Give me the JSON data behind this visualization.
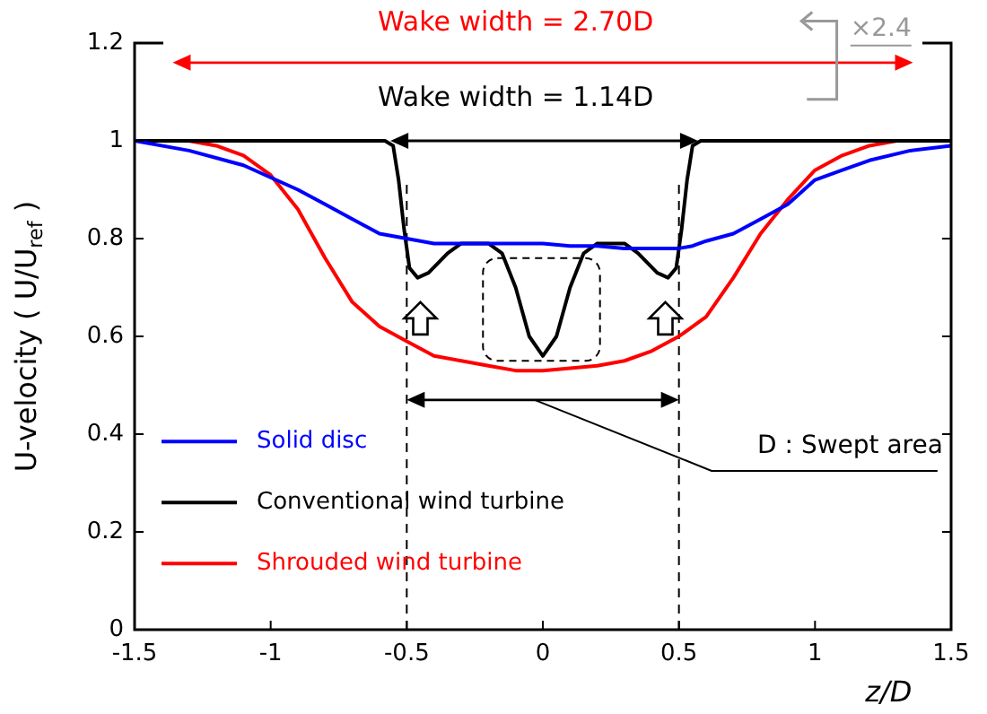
{
  "chart_data": {
    "type": "line",
    "xlabel": "z/D",
    "ylabel": "U-velocity ( U/U$_{ref}$ )",
    "xlim": [
      -1.5,
      1.5
    ],
    "xticks": [
      -1.5,
      -1,
      -0.5,
      0,
      0.5,
      1,
      1.5
    ],
    "ylim": [
      0,
      1.2
    ],
    "yticks": [
      0,
      0.2,
      0.4,
      0.6,
      0.8,
      1,
      1.2
    ],
    "grid": false,
    "legend": "bottom left",
    "marker": "none",
    "line_style": "solid",
    "series": [
      {
        "name": "Solid disc",
        "color": "#0000ff",
        "x": [
          -1.5,
          -1.3,
          -1.1,
          -0.9,
          -0.8,
          -0.7,
          -0.6,
          -0.5,
          -0.4,
          -0.3,
          -0.15,
          0,
          0.1,
          0.2,
          0.3,
          0.4,
          0.5,
          0.55,
          0.6,
          0.7,
          0.8,
          0.9,
          1,
          1.1,
          1.2,
          1.35,
          1.5
        ],
        "values": [
          1,
          0.98,
          0.95,
          0.9,
          0.87,
          0.84,
          0.81,
          0.8,
          0.79,
          0.79,
          0.79,
          0.79,
          0.785,
          0.785,
          0.78,
          0.78,
          0.78,
          0.785,
          0.795,
          0.81,
          0.84,
          0.87,
          0.92,
          0.94,
          0.96,
          0.98,
          0.99
        ]
      },
      {
        "name": "Conventional wind turbine",
        "color": "#000000",
        "x": [
          -1.5,
          -0.58,
          -0.55,
          -0.53,
          -0.51,
          -0.49,
          -0.46,
          -0.42,
          -0.35,
          -0.3,
          -0.2,
          -0.15,
          -0.1,
          -0.05,
          0,
          0.05,
          0.1,
          0.15,
          0.2,
          0.3,
          0.35,
          0.42,
          0.46,
          0.49,
          0.51,
          0.53,
          0.55,
          0.58,
          1.5
        ],
        "values": [
          1,
          1,
          0.99,
          0.92,
          0.82,
          0.74,
          0.72,
          0.73,
          0.77,
          0.79,
          0.79,
          0.77,
          0.7,
          0.6,
          0.56,
          0.6,
          0.7,
          0.77,
          0.79,
          0.79,
          0.77,
          0.73,
          0.72,
          0.74,
          0.82,
          0.92,
          0.99,
          1,
          1
        ]
      },
      {
        "name": "Shrouded wind turbine",
        "color": "#ff0000",
        "x": [
          -1.5,
          -1.3,
          -1.2,
          -1.1,
          -1,
          -0.9,
          -0.8,
          -0.7,
          -0.6,
          -0.5,
          -0.4,
          -0.3,
          -0.2,
          -0.1,
          0,
          0.1,
          0.2,
          0.3,
          0.4,
          0.5,
          0.6,
          0.7,
          0.8,
          0.9,
          1,
          1.1,
          1.2,
          1.3
        ],
        "values": [
          1,
          1,
          0.99,
          0.97,
          0.93,
          0.86,
          0.76,
          0.67,
          0.62,
          0.59,
          0.56,
          0.55,
          0.54,
          0.53,
          0.53,
          0.535,
          0.54,
          0.55,
          0.57,
          0.6,
          0.64,
          0.72,
          0.81,
          0.88,
          0.94,
          0.97,
          0.99,
          1
        ]
      }
    ],
    "ref_lines": [
      {
        "axis": "x",
        "value": -0.5,
        "color": "#000000",
        "line_style": "dashed"
      },
      {
        "axis": "x",
        "value": 0.5,
        "color": "#000000",
        "line_style": "dashed"
      }
    ],
    "annotations": [
      "Wake width = 2.70D",
      "Wake width = 1.14D",
      "×2.4",
      "D : Swept area"
    ]
  }
}
